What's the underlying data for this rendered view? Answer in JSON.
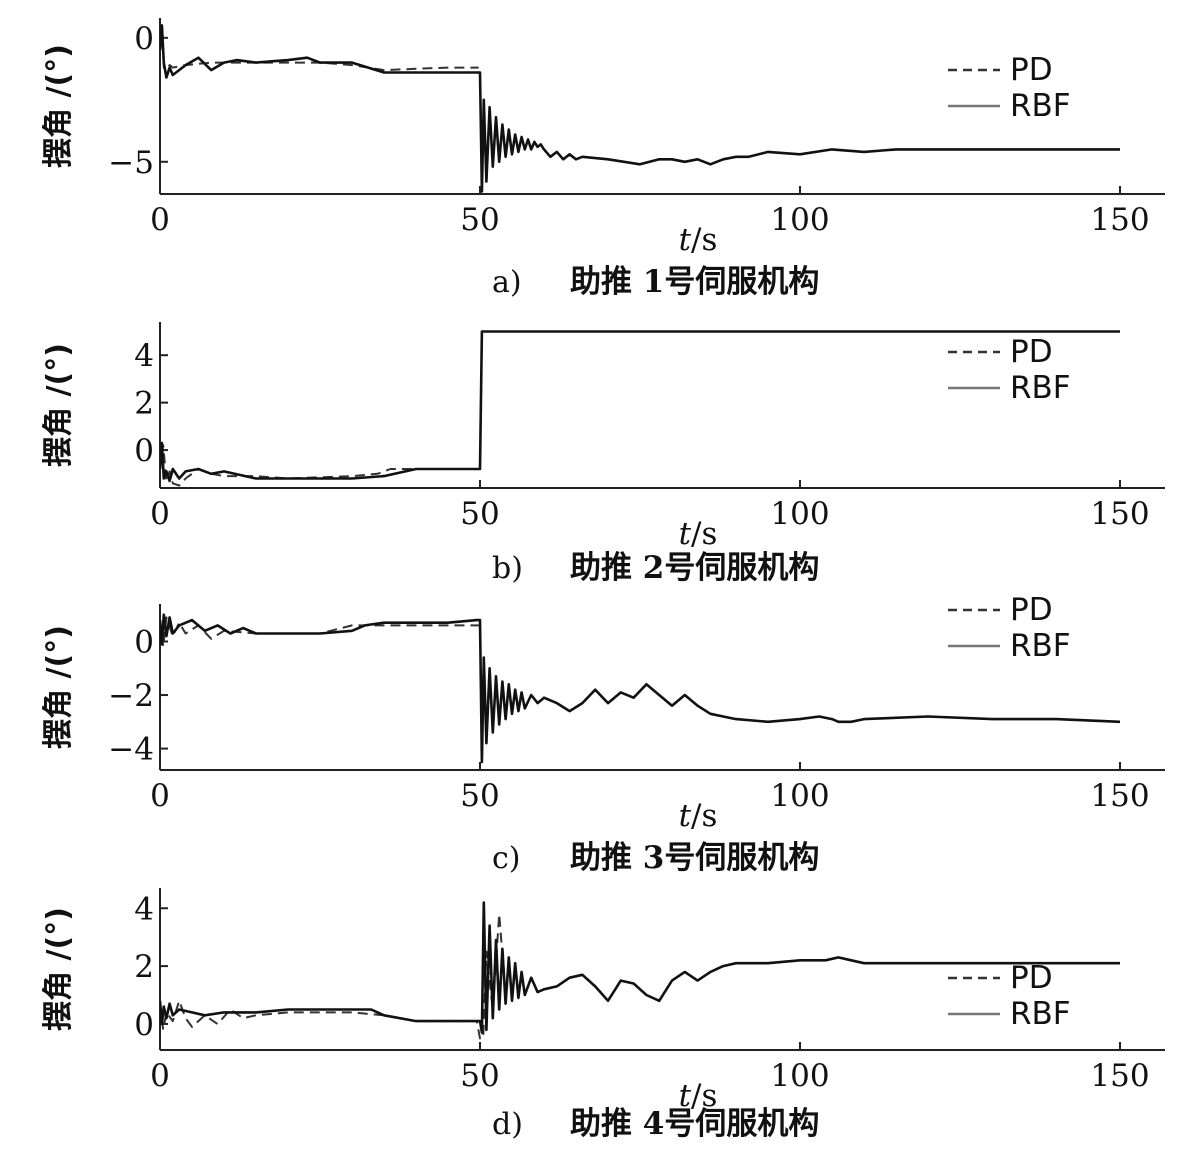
{
  "figure": {
    "chart_data": [
      {
        "type": "line",
        "xlim": [
          0,
          150
        ],
        "ylim": [
          -6.3,
          0.8
        ],
        "yticks": [
          0,
          -5
        ],
        "xticks": [
          0,
          50,
          100,
          150
        ],
        "xlabel": "t/s",
        "ylabel": "摆角 /(°)",
        "caption_letter": "a)",
        "caption_text": "助推 1号伺服机构",
        "legend": "top-right",
        "series": [
          {
            "name": "PD",
            "style": "dashed",
            "x": [
              0,
              0.3,
              0.6,
              1,
              1.5,
              2,
              4,
              8,
              12,
              20,
              25,
              30,
              35,
              40,
              45,
              49.5,
              49.8
            ],
            "y": [
              -0.5,
              0.6,
              -1.2,
              -1.3,
              -1.1,
              -1.2,
              -1.1,
              -1.0,
              -1.0,
              -1.0,
              -1.0,
              -1.1,
              -1.3,
              -1.25,
              -1.2,
              -1.2,
              -1.2
            ]
          },
          {
            "name": "RBF",
            "style": "solid",
            "x": [
              0,
              0.3,
              0.6,
              1,
              1.5,
              2,
              4,
              6,
              8,
              10,
              12,
              15,
              20,
              23,
              25,
              30,
              35,
              40,
              45,
              49.5,
              50,
              50.3,
              50.6,
              51,
              51.5,
              52,
              52.5,
              53,
              53.5,
              54,
              54.5,
              55,
              55.5,
              56,
              56.5,
              57,
              57.5,
              58,
              58.5,
              59,
              59.5,
              60,
              61,
              62,
              63,
              64,
              65,
              66,
              70,
              75,
              78,
              80,
              82,
              84,
              86,
              88,
              90,
              92,
              95,
              100,
              105,
              110,
              115,
              120,
              130,
              140,
              150
            ],
            "y": [
              -0.5,
              0.5,
              -1.0,
              -1.6,
              -1.2,
              -1.5,
              -1.1,
              -0.8,
              -1.3,
              -1.0,
              -0.9,
              -1.0,
              -0.9,
              -0.8,
              -1.0,
              -1.0,
              -1.4,
              -1.4,
              -1.4,
              -1.4,
              -1.4,
              -6.2,
              -2.5,
              -5.8,
              -2.8,
              -5.2,
              -3.2,
              -5.0,
              -3.5,
              -4.8,
              -3.7,
              -4.7,
              -3.9,
              -4.6,
              -4.0,
              -4.5,
              -4.1,
              -4.5,
              -4.2,
              -4.4,
              -4.3,
              -4.5,
              -4.8,
              -4.6,
              -4.9,
              -4.7,
              -4.9,
              -4.8,
              -4.9,
              -5.1,
              -4.9,
              -4.9,
              -5.0,
              -4.9,
              -5.1,
              -4.9,
              -4.8,
              -4.8,
              -4.6,
              -4.7,
              -4.5,
              -4.6,
              -4.5,
              -4.5,
              -4.5,
              -4.5,
              -4.5
            ]
          }
        ]
      },
      {
        "type": "line",
        "xlim": [
          0,
          150
        ],
        "ylim": [
          -1.6,
          5.4
        ],
        "yticks": [
          0,
          2,
          4
        ],
        "xticks": [
          0,
          50,
          100,
          150
        ],
        "xlabel": "t/s",
        "ylabel": "摆角 /(°)",
        "caption_letter": "b)",
        "caption_text": "助推 2号伺服机构",
        "legend": "top-right",
        "series": [
          {
            "name": "PD",
            "style": "dashed",
            "x": [
              0,
              0.5,
              1,
              1.5,
              2,
              3,
              4,
              6,
              8,
              10,
              15,
              20,
              30,
              34,
              36,
              40,
              45,
              49.5,
              50
            ],
            "y": [
              -0.8,
              0.2,
              -1.3,
              -0.9,
              -1.4,
              -1.5,
              -1.2,
              -0.8,
              -1.0,
              -1.1,
              -1.1,
              -1.2,
              -1.1,
              -1.0,
              -0.8,
              -0.8,
              -0.8,
              -0.8,
              -0.8
            ]
          },
          {
            "name": "RBF",
            "style": "solid",
            "x": [
              0,
              0.3,
              0.6,
              1,
              1.5,
              2,
              3,
              4,
              6,
              8,
              10,
              15,
              20,
              25,
              30,
              35,
              40,
              45,
              49.5,
              50,
              50.3,
              51,
              60,
              80,
              100,
              120,
              140,
              150
            ],
            "y": [
              -0.8,
              0.3,
              -1.2,
              -0.9,
              -1.3,
              -0.8,
              -1.2,
              -0.9,
              -0.8,
              -1.0,
              -0.9,
              -1.2,
              -1.2,
              -1.2,
              -1.2,
              -1.1,
              -0.8,
              -0.8,
              -0.8,
              -0.8,
              5.0,
              5.0,
              5.0,
              5.0,
              5.0,
              5.0,
              5.0,
              5.0
            ]
          }
        ]
      },
      {
        "type": "line",
        "xlim": [
          0,
          150
        ],
        "ylim": [
          -4.8,
          1.4
        ],
        "yticks": [
          0,
          -2,
          -4
        ],
        "xticks": [
          0,
          50,
          100,
          150
        ],
        "xlabel": "t/s",
        "ylabel": "摆角 /(°)",
        "caption_letter": "c)",
        "caption_text": "助推 3号伺服机构",
        "legend": "top-right",
        "series": [
          {
            "name": "PD",
            "style": "dashed",
            "x": [
              0,
              0.5,
              1,
              2,
              3,
              4,
              6,
              8,
              10,
              15,
              20,
              25,
              30,
              35,
              40,
              45,
              49.5,
              50
            ],
            "y": [
              0.8,
              -0.2,
              0.9,
              0.2,
              0.7,
              0.3,
              0.6,
              0.1,
              0.4,
              0.3,
              0.3,
              0.3,
              0.6,
              0.6,
              0.6,
              0.6,
              0.6,
              0.6
            ]
          },
          {
            "name": "RBF",
            "style": "solid",
            "x": [
              0,
              0.3,
              0.6,
              1,
              1.5,
              2,
              3,
              5,
              7,
              9,
              11,
              13,
              15,
              20,
              25,
              30,
              32,
              35,
              40,
              45,
              49.5,
              50,
              50.3,
              50.6,
              51,
              51.5,
              52,
              52.5,
              53,
              53.5,
              54,
              54.5,
              55,
              55.5,
              56,
              56.5,
              57,
              58,
              59,
              60,
              62,
              64,
              66,
              68,
              70,
              72,
              74,
              76,
              78,
              80,
              82,
              84,
              86,
              88,
              90,
              95,
              100,
              103,
              105,
              106,
              108,
              110,
              120,
              130,
              140,
              150
            ],
            "y": [
              0.8,
              -0.1,
              1.0,
              0.2,
              0.9,
              0.3,
              0.6,
              0.8,
              0.4,
              0.6,
              0.3,
              0.5,
              0.3,
              0.3,
              0.3,
              0.4,
              0.6,
              0.7,
              0.7,
              0.7,
              0.8,
              0.8,
              -4.5,
              -0.6,
              -3.8,
              -1.0,
              -3.4,
              -1.3,
              -3.1,
              -1.5,
              -2.9,
              -1.6,
              -2.7,
              -1.8,
              -2.6,
              -1.9,
              -2.5,
              -2.0,
              -2.3,
              -2.1,
              -2.3,
              -2.6,
              -2.3,
              -1.8,
              -2.3,
              -1.9,
              -2.1,
              -1.6,
              -2.0,
              -2.4,
              -2.0,
              -2.4,
              -2.7,
              -2.8,
              -2.9,
              -3.0,
              -2.9,
              -2.8,
              -2.9,
              -3.0,
              -3.0,
              -2.9,
              -2.8,
              -2.9,
              -2.9,
              -3.0
            ]
          }
        ]
      },
      {
        "type": "line",
        "xlim": [
          0,
          150
        ],
        "ylim": [
          -0.9,
          4.7
        ],
        "yticks": [
          0,
          2,
          4
        ],
        "xticks": [
          0,
          50,
          100,
          150
        ],
        "xlabel": "t/s",
        "ylabel": "摆角 /(°)",
        "caption_letter": "d)",
        "caption_text": "助推 4号伺服机构",
        "legend": "right",
        "series": [
          {
            "name": "PD",
            "style": "dashed",
            "x": [
              0,
              0.5,
              1,
              2,
              3,
              4,
              5,
              7,
              9,
              11,
              13,
              15,
              20,
              25,
              30,
              35,
              40,
              45,
              49.5,
              50,
              50.5,
              51,
              52,
              53,
              54
            ],
            "y": [
              0.7,
              -0.2,
              0.4,
              0.1,
              0.8,
              0.2,
              -0.1,
              0.3,
              0.0,
              0.5,
              0.2,
              0.3,
              0.4,
              0.4,
              0.4,
              0.3,
              0.1,
              0.1,
              0.1,
              -0.5,
              -0.5,
              2.5,
              0.5,
              3.8,
              1.0
            ]
          },
          {
            "name": "RBF",
            "style": "solid",
            "x": [
              0,
              0.3,
              0.6,
              1,
              1.5,
              2,
              3,
              5,
              7,
              10,
              15,
              20,
              25,
              30,
              33,
              35,
              40,
              45,
              49.5,
              50,
              50.3,
              50.6,
              51,
              51.5,
              52,
              52.5,
              53,
              53.5,
              54,
              54.5,
              55,
              55.5,
              56,
              56.5,
              57,
              58,
              59,
              60,
              62,
              64,
              66,
              68,
              70,
              72,
              74,
              76,
              78,
              80,
              82,
              84,
              86,
              88,
              90,
              95,
              100,
              104,
              106,
              108,
              110,
              120,
              130,
              140,
              150
            ],
            "y": [
              0.8,
              0.0,
              0.6,
              0.2,
              0.7,
              0.3,
              0.5,
              0.4,
              0.3,
              0.4,
              0.4,
              0.5,
              0.5,
              0.5,
              0.5,
              0.3,
              0.1,
              0.1,
              0.1,
              0.1,
              -0.3,
              4.2,
              -0.2,
              3.4,
              0.2,
              2.9,
              0.5,
              2.6,
              0.7,
              2.3,
              0.8,
              2.1,
              0.9,
              1.8,
              1.0,
              1.6,
              1.1,
              1.2,
              1.3,
              1.6,
              1.7,
              1.3,
              0.8,
              1.5,
              1.4,
              1.0,
              0.8,
              1.5,
              1.8,
              1.5,
              1.8,
              2.0,
              2.1,
              2.1,
              2.2,
              2.2,
              2.3,
              2.2,
              2.1,
              2.1,
              2.1,
              2.1,
              2.1
            ]
          }
        ]
      }
    ]
  }
}
